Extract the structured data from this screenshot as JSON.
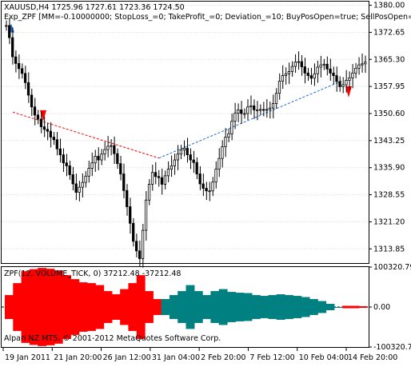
{
  "main_panel": {
    "symbol_line": "XAUUSD,H4  1725.96 1727.61 1723.36 1724.50",
    "expert_line": "Exp_ZPF [MM=-0.10000000; StopLoss_=0; TakeProfit_=0; Deviation_=10; BuyPosOpen=true; SellPosOpen=",
    "price_scale": [
      "1380.00",
      "1372.65",
      "1365.30",
      "1357.95",
      "1350.60",
      "1343.25",
      "1335.90",
      "1328.55",
      "1321.20",
      "1313.85"
    ]
  },
  "indicator_panel": {
    "label": "ZPF(12, VOLUME_TICK, 0) 37212.48 -37212.48",
    "scale": [
      "100320.79",
      "0.00",
      "-100320.79"
    ],
    "colors": {
      "down": "#ff0000",
      "up": "#008080",
      "zero_line": "#000000"
    }
  },
  "time_axis": [
    "19 Jan 2011",
    "21 Jan 20:00",
    "26 Jan 12:00",
    "31 Jan 04:00",
    "2 Feb 20:00",
    "7 Feb 12:00",
    "10 Feb 04:00",
    "14 Feb 20:00"
  ],
  "copyright": "Alpari NZ MT5, © 2001-2012 MetaQuotes Software Corp.",
  "colors": {
    "candle": "#000000",
    "trend_red": "#ff0000",
    "trend_blue": "#1e6fd9",
    "grid": "#c0c0c0"
  },
  "chart_data": {
    "type": "candlestick",
    "ohlc_close": [
      1374.5,
      1371.2,
      1366.0,
      1364.2,
      1362.8,
      1361.5,
      1359.0,
      1355.6,
      1352.4,
      1350.2,
      1349.1,
      1347.0,
      1346.3,
      1345.8,
      1344.2,
      1343.5,
      1341.0,
      1339.4,
      1337.2,
      1336.4,
      1334.0,
      1331.5,
      1329.2,
      1330.6,
      1331.9,
      1333.6,
      1335.7,
      1337.2,
      1339.0,
      1338.0,
      1339.6,
      1340.8,
      1341.7,
      1341.9,
      1339.7,
      1337.0,
      1334.2,
      1329.7,
      1325.3,
      1320.8,
      1315.9,
      1313.3,
      1311.2,
      1318.9,
      1327.1,
      1331.4,
      1334.6,
      1333.5,
      1333.2,
      1331.4,
      1333.7,
      1335.5,
      1336.4,
      1338.0,
      1339.6,
      1340.7,
      1341.2,
      1339.4,
      1338.0,
      1337.3,
      1334.2,
      1331.5,
      1330.3,
      1329.6,
      1329.6,
      1332.0,
      1335.5,
      1338.4,
      1341.6,
      1344.2,
      1345.1,
      1348.5,
      1350.7,
      1351.6,
      1350.6,
      1350.6,
      1352.4,
      1352.7,
      1351.6,
      1351.6,
      1351.7,
      1351.6,
      1351.7,
      1352.1,
      1353.3,
      1356.1,
      1359.4,
      1360.9,
      1361.4,
      1362.0,
      1363.4,
      1364.6,
      1364.7,
      1363.3,
      1361.6,
      1360.9,
      1360.2,
      1361.4,
      1363.2,
      1363.8,
      1364.0,
      1362.7,
      1361.6,
      1360.9,
      1359.3,
      1357.9,
      1358.4,
      1359.6,
      1360.3,
      1361.6,
      1362.9,
      1363.8,
      1364.1,
      1364.6
    ],
    "zpf": [
      -30000,
      -60000,
      -90000,
      -95000,
      -98000,
      -96000,
      -92000,
      -80000,
      -70000,
      -62000,
      -60000,
      -55000,
      -40000,
      -32000,
      -45000,
      -60000,
      -80000,
      -40000,
      -20000,
      20000,
      30000,
      40000,
      55000,
      40000,
      30000,
      40000,
      45000,
      38000,
      36000,
      35000,
      30000,
      28000,
      30000,
      32000,
      30000,
      28000,
      25000,
      20000,
      15000,
      8000,
      0,
      -3000,
      -3000,
      -2000
    ],
    "ylim": [
      1310,
      1381
    ],
    "zpf_ylim": [
      -100320.79,
      100320.79
    ],
    "grid": true
  }
}
